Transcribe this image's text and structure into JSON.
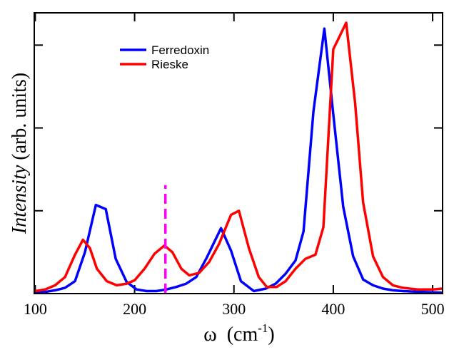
{
  "chart_data": {
    "type": "line",
    "xlabel": {
      "symbol": "ω",
      "unit": "(cm",
      "exponent": "-1",
      "close": ")"
    },
    "ylabel": {
      "emphasis": "Intensity",
      "rest": "(arb. units)"
    },
    "xlim": [
      99,
      510
    ],
    "xticks": [
      100,
      200,
      300,
      400,
      500
    ],
    "ylim": [
      0,
      3.39
    ],
    "yticks": [
      0,
      1,
      2,
      3
    ],
    "legend": "upper left",
    "marker_line": {
      "x": 231,
      "y": [
        0,
        1.31
      ],
      "color": "#ff00ff"
    },
    "series": [
      {
        "name": "Ferredoxin",
        "color": "#0000ff",
        "x": [
          100,
          110,
          120,
          130,
          140,
          150,
          161,
          171,
          181,
          192,
          202,
          212,
          222,
          232,
          242,
          252,
          262,
          272,
          287,
          297,
          307,
          320,
          332,
          342,
          352,
          362,
          370,
          380,
          391,
          401,
          410,
          420,
          430,
          440,
          450,
          460,
          470,
          490,
          510
        ],
        "values": [
          0.01,
          0.02,
          0.04,
          0.07,
          0.15,
          0.5,
          1.07,
          1.02,
          0.42,
          0.14,
          0.05,
          0.03,
          0.03,
          0.05,
          0.08,
          0.12,
          0.2,
          0.42,
          0.79,
          0.52,
          0.15,
          0.03,
          0.06,
          0.12,
          0.24,
          0.4,
          0.75,
          2.2,
          3.2,
          2.05,
          1.05,
          0.45,
          0.17,
          0.1,
          0.06,
          0.04,
          0.03,
          0.02,
          0.01
        ]
      },
      {
        "name": "Rieske",
        "color": "#ff0000",
        "x": [
          100,
          110,
          120,
          130,
          140,
          148,
          155,
          162,
          172,
          182,
          192,
          200,
          210,
          220,
          230,
          238,
          247,
          255,
          265,
          275,
          285,
          297,
          305,
          315,
          325,
          333,
          343,
          352,
          362,
          372,
          382,
          390,
          400,
          413,
          422,
          430,
          440,
          450,
          460,
          470,
          485,
          500,
          510
        ],
        "values": [
          0.03,
          0.05,
          0.1,
          0.2,
          0.47,
          0.65,
          0.55,
          0.3,
          0.15,
          0.1,
          0.12,
          0.16,
          0.3,
          0.48,
          0.58,
          0.5,
          0.3,
          0.22,
          0.25,
          0.38,
          0.6,
          0.95,
          1.0,
          0.55,
          0.2,
          0.08,
          0.08,
          0.15,
          0.3,
          0.42,
          0.47,
          0.8,
          2.95,
          3.27,
          2.3,
          1.1,
          0.45,
          0.2,
          0.1,
          0.07,
          0.05,
          0.05,
          0.06
        ]
      }
    ]
  }
}
